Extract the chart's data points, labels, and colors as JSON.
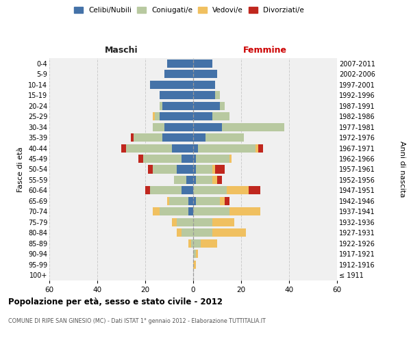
{
  "age_groups": [
    "100+",
    "95-99",
    "90-94",
    "85-89",
    "80-84",
    "75-79",
    "70-74",
    "65-69",
    "60-64",
    "55-59",
    "50-54",
    "45-49",
    "40-44",
    "35-39",
    "30-34",
    "25-29",
    "20-24",
    "15-19",
    "10-14",
    "5-9",
    "0-4"
  ],
  "birth_years": [
    "≤ 1911",
    "1912-1916",
    "1917-1921",
    "1922-1926",
    "1927-1931",
    "1932-1936",
    "1937-1941",
    "1942-1946",
    "1947-1951",
    "1952-1956",
    "1957-1961",
    "1962-1966",
    "1967-1971",
    "1972-1976",
    "1977-1981",
    "1982-1986",
    "1987-1991",
    "1992-1996",
    "1997-2001",
    "2002-2006",
    "2007-2011"
  ],
  "maschi": {
    "celibi": [
      0,
      0,
      0,
      0,
      0,
      0,
      2,
      2,
      5,
      3,
      7,
      5,
      9,
      13,
      12,
      14,
      13,
      14,
      18,
      12,
      11
    ],
    "coniugati": [
      0,
      0,
      0,
      1,
      5,
      7,
      12,
      8,
      13,
      5,
      10,
      16,
      19,
      12,
      5,
      2,
      1,
      0,
      0,
      0,
      0
    ],
    "vedovi": [
      0,
      0,
      0,
      1,
      2,
      2,
      3,
      1,
      0,
      0,
      0,
      0,
      0,
      0,
      0,
      1,
      0,
      0,
      0,
      0,
      0
    ],
    "divorziati": [
      0,
      0,
      0,
      0,
      0,
      0,
      0,
      0,
      2,
      0,
      2,
      2,
      2,
      1,
      0,
      0,
      0,
      0,
      0,
      0,
      0
    ]
  },
  "femmine": {
    "nubili": [
      0,
      0,
      0,
      0,
      0,
      0,
      0,
      1,
      0,
      1,
      1,
      1,
      2,
      5,
      12,
      8,
      11,
      9,
      9,
      10,
      8
    ],
    "coniugate": [
      0,
      0,
      1,
      3,
      8,
      8,
      15,
      10,
      14,
      7,
      7,
      14,
      24,
      16,
      26,
      7,
      2,
      2,
      0,
      0,
      0
    ],
    "vedove": [
      0,
      1,
      1,
      7,
      14,
      9,
      13,
      2,
      9,
      2,
      1,
      1,
      1,
      0,
      0,
      0,
      0,
      0,
      0,
      0,
      0
    ],
    "divorziate": [
      0,
      0,
      0,
      0,
      0,
      0,
      0,
      2,
      5,
      2,
      4,
      0,
      2,
      0,
      0,
      0,
      0,
      0,
      0,
      0,
      0
    ]
  },
  "colors": {
    "celibi": "#4472a8",
    "coniugati": "#b8c9a0",
    "vedovi": "#f0c060",
    "divorziati": "#c0271e"
  },
  "xlim": 60,
  "title": "Popolazione per età, sesso e stato civile - 2012",
  "subtitle": "COMUNE DI RIPE SAN GINESIO (MC) - Dati ISTAT 1° gennaio 2012 - Elaborazione TUTTITALIA.IT",
  "ylabel_left": "Fasce di età",
  "ylabel_right": "Anni di nascita",
  "xlabel_maschi": "Maschi",
  "xlabel_femmine": "Femmine",
  "bg_color": "#ffffff",
  "plot_bg": "#f0f0f0",
  "grid_color": "#cccccc"
}
